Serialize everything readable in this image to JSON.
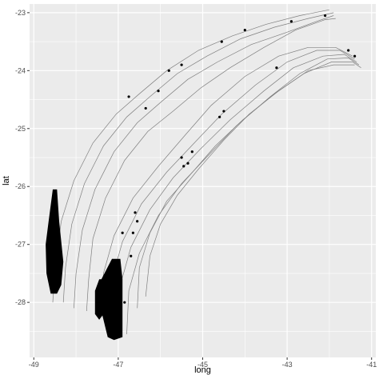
{
  "chart_data": {
    "type": "scatter",
    "title": "",
    "xlabel": "long",
    "ylabel": "lat",
    "xlim": [
      -49.1,
      -40.9
    ],
    "ylim": [
      -28.95,
      -22.85
    ],
    "x_ticks": [
      -49,
      -47,
      -45,
      -43,
      -41
    ],
    "x_tick_labels": [
      "-49",
      "-47",
      "-45",
      "-43",
      "-41"
    ],
    "y_ticks": [
      -23,
      -24,
      -25,
      -26,
      -27,
      -28
    ],
    "y_tick_labels": [
      "-23",
      "-24",
      "-25",
      "-26",
      "-27",
      "-28"
    ],
    "grid": true,
    "panel_color": "#ebebeb",
    "grid_color": "#ffffff",
    "line_color": "#7f7f7f",
    "mark_color": "#000000",
    "contour_lines": [
      [
        [
          -48.55,
          -28.0
        ],
        [
          -48.5,
          -27.4
        ],
        [
          -48.35,
          -26.6
        ],
        [
          -48.05,
          -25.9
        ],
        [
          -47.6,
          -25.25
        ],
        [
          -47.05,
          -24.75
        ],
        [
          -46.5,
          -24.4
        ],
        [
          -45.85,
          -24.0
        ],
        [
          -45.1,
          -23.65
        ],
        [
          -44.3,
          -23.4
        ],
        [
          -43.5,
          -23.2
        ],
        [
          -42.7,
          -23.05
        ],
        [
          -42.0,
          -22.95
        ]
      ],
      [
        [
          -48.3,
          -28.0
        ],
        [
          -48.25,
          -27.4
        ],
        [
          -48.1,
          -26.65
        ],
        [
          -47.8,
          -25.95
        ],
        [
          -47.35,
          -25.3
        ],
        [
          -46.8,
          -24.8
        ],
        [
          -46.25,
          -24.45
        ],
        [
          -45.6,
          -24.05
        ],
        [
          -44.9,
          -23.75
        ],
        [
          -44.1,
          -23.45
        ],
        [
          -43.3,
          -23.25
        ],
        [
          -42.5,
          -23.1
        ],
        [
          -41.9,
          -23.0
        ]
      ],
      [
        [
          -48.05,
          -28.1
        ],
        [
          -48.0,
          -27.5
        ],
        [
          -47.85,
          -26.75
        ],
        [
          -47.55,
          -26.05
        ],
        [
          -47.1,
          -25.4
        ],
        [
          -46.55,
          -24.9
        ],
        [
          -46.0,
          -24.55
        ],
        [
          -45.35,
          -24.15
        ],
        [
          -44.65,
          -23.85
        ],
        [
          -43.85,
          -23.55
        ],
        [
          -43.05,
          -23.35
        ],
        [
          -42.3,
          -23.15
        ],
        [
          -41.9,
          -23.05
        ]
      ],
      [
        [
          -47.75,
          -28.15
        ],
        [
          -47.7,
          -27.6
        ],
        [
          -47.6,
          -26.9
        ],
        [
          -47.3,
          -26.2
        ],
        [
          -46.85,
          -25.55
        ],
        [
          -46.3,
          -25.05
        ],
        [
          -45.7,
          -24.7
        ],
        [
          -45.05,
          -24.3
        ],
        [
          -44.35,
          -23.95
        ],
        [
          -43.55,
          -23.6
        ],
        [
          -42.8,
          -23.3
        ],
        [
          -42.1,
          -23.12
        ],
        [
          -41.85,
          -23.1
        ]
      ],
      [
        [
          -47.4,
          -28.25
        ],
        [
          -47.35,
          -27.5
        ],
        [
          -47.1,
          -26.85
        ],
        [
          -46.65,
          -26.2
        ],
        [
          -46.05,
          -25.65
        ],
        [
          -45.4,
          -25.1
        ],
        [
          -44.8,
          -24.6
        ],
        [
          -44.0,
          -24.1
        ],
        [
          -43.2,
          -23.75
        ],
        [
          -42.5,
          -23.6
        ],
        [
          -41.85,
          -23.6
        ],
        [
          -41.45,
          -23.75
        ]
      ],
      [
        [
          -47.2,
          -28.4
        ],
        [
          -47.15,
          -27.6
        ],
        [
          -46.9,
          -26.95
        ],
        [
          -46.45,
          -26.3
        ],
        [
          -45.85,
          -25.75
        ],
        [
          -45.2,
          -25.25
        ],
        [
          -44.55,
          -24.75
        ],
        [
          -43.75,
          -24.25
        ],
        [
          -43.0,
          -23.85
        ],
        [
          -42.3,
          -23.65
        ],
        [
          -41.75,
          -23.65
        ],
        [
          -41.4,
          -23.8
        ]
      ],
      [
        [
          -47.0,
          -28.5
        ],
        [
          -46.95,
          -27.7
        ],
        [
          -46.7,
          -27.05
        ],
        [
          -46.25,
          -26.4
        ],
        [
          -45.7,
          -25.85
        ],
        [
          -45.05,
          -25.35
        ],
        [
          -44.35,
          -24.85
        ],
        [
          -43.55,
          -24.35
        ],
        [
          -42.85,
          -23.95
        ],
        [
          -42.15,
          -23.75
        ],
        [
          -41.65,
          -23.72
        ],
        [
          -41.35,
          -23.85
        ]
      ],
      [
        [
          -46.8,
          -28.55
        ],
        [
          -46.75,
          -27.8
        ],
        [
          -46.5,
          -27.15
        ],
        [
          -46.05,
          -26.5
        ],
        [
          -45.5,
          -25.95
        ],
        [
          -44.85,
          -25.45
        ],
        [
          -44.2,
          -24.95
        ],
        [
          -43.4,
          -24.45
        ],
        [
          -42.7,
          -24.05
        ],
        [
          -42.05,
          -23.8
        ],
        [
          -41.55,
          -23.78
        ],
        [
          -41.3,
          -23.9
        ]
      ],
      [
        [
          -46.55,
          -28.1
        ],
        [
          -46.5,
          -27.4
        ],
        [
          -46.25,
          -26.8
        ],
        [
          -45.85,
          -26.25
        ],
        [
          -45.3,
          -25.8
        ],
        [
          -44.7,
          -25.3
        ],
        [
          -44.05,
          -24.85
        ],
        [
          -43.3,
          -24.4
        ],
        [
          -42.6,
          -24.05
        ],
        [
          -41.95,
          -23.85
        ],
        [
          -41.45,
          -23.85
        ],
        [
          -41.25,
          -23.95
        ]
      ],
      [
        [
          -46.35,
          -27.9
        ],
        [
          -46.25,
          -27.2
        ],
        [
          -46.0,
          -26.65
        ],
        [
          -45.6,
          -26.15
        ],
        [
          -45.1,
          -25.7
        ],
        [
          -44.5,
          -25.2
        ],
        [
          -43.9,
          -24.75
        ],
        [
          -43.2,
          -24.35
        ],
        [
          -42.5,
          -24.0
        ],
        [
          -41.9,
          -23.9
        ],
        [
          -41.4,
          -23.9
        ]
      ]
    ],
    "filled_regions": [
      [
        [
          -48.55,
          -26.05
        ],
        [
          -48.45,
          -26.05
        ],
        [
          -48.4,
          -26.6
        ],
        [
          -48.3,
          -27.3
        ],
        [
          -48.35,
          -27.7
        ],
        [
          -48.45,
          -27.85
        ],
        [
          -48.6,
          -27.85
        ],
        [
          -48.7,
          -27.5
        ],
        [
          -48.72,
          -27.0
        ],
        [
          -48.65,
          -26.6
        ]
      ],
      [
        [
          -47.15,
          -27.25
        ],
        [
          -46.95,
          -27.25
        ],
        [
          -46.9,
          -27.6
        ],
        [
          -46.9,
          -28.6
        ],
        [
          -47.1,
          -28.65
        ],
        [
          -47.25,
          -28.6
        ],
        [
          -47.35,
          -28.3
        ],
        [
          -47.45,
          -28.0
        ],
        [
          -47.4,
          -27.6
        ]
      ],
      [
        [
          -47.45,
          -27.6
        ],
        [
          -47.35,
          -27.6
        ],
        [
          -47.35,
          -28.2
        ],
        [
          -47.45,
          -28.3
        ],
        [
          -47.55,
          -28.2
        ],
        [
          -47.55,
          -27.8
        ]
      ]
    ],
    "point_marks": [
      [
        -48.45,
        -27.35
      ],
      [
        -46.85,
        -28.0
      ],
      [
        -46.65,
        -26.8
      ],
      [
        -46.7,
        -27.2
      ],
      [
        -46.6,
        -26.45
      ],
      [
        -45.45,
        -25.65
      ],
      [
        -45.5,
        -25.5
      ],
      [
        -44.6,
        -24.8
      ],
      [
        -44.5,
        -24.7
      ],
      [
        -43.25,
        -23.95
      ],
      [
        -42.1,
        -23.05
      ],
      [
        -41.55,
        -23.65
      ],
      [
        -41.4,
        -23.75
      ],
      [
        -45.5,
        -23.9
      ],
      [
        -45.8,
        -24.0
      ],
      [
        -46.75,
        -24.45
      ],
      [
        -46.35,
        -24.65
      ],
      [
        -46.05,
        -24.35
      ],
      [
        -44.55,
        -23.5
      ],
      [
        -44.0,
        -23.3
      ],
      [
        -42.9,
        -23.15
      ],
      [
        -45.25,
        -25.4
      ],
      [
        -45.35,
        -25.6
      ],
      [
        -46.55,
        -26.6
      ],
      [
        -46.9,
        -26.8
      ]
    ]
  }
}
